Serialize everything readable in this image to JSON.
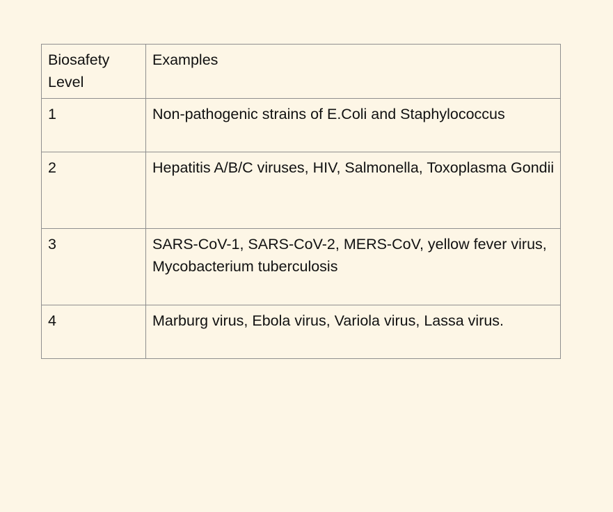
{
  "table": {
    "headers": [
      "Biosafety Level",
      "Examples"
    ],
    "rows": [
      {
        "level": "1",
        "examples": "Non-pathogenic strains of E.Coli and Staphylococcus"
      },
      {
        "level": "2",
        "examples": "Hepatitis A/B/C viruses, HIV, Salmonella, Toxoplasma Gondii"
      },
      {
        "level": "3",
        "examples": "SARS-CoV-1, SARS-CoV-2, MERS-CoV, yellow fever virus, Mycobacterium tuberculosis"
      },
      {
        "level": "4",
        "examples": "Marburg virus, Ebola virus, Variola virus, Lassa virus."
      }
    ]
  },
  "colors": {
    "background": "#fdf6e6",
    "border": "#8f8f8f",
    "text": "#111111"
  }
}
